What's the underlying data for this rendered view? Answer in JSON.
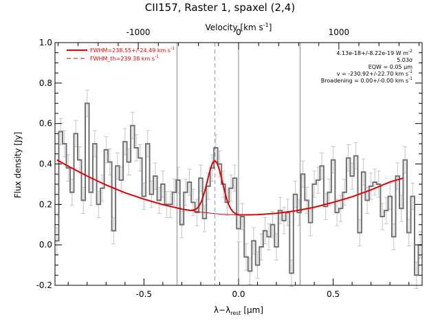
{
  "chart_data": {
    "type": "line",
    "title": "CII157, Raster 1, spaxel (2,4)",
    "xlabel": "λ−λ",
    "xlabel_sub": "rest",
    "xlabel_unit": " [μm]",
    "ylabel": "Flux density [Jy]",
    "top_axis_label": "Velocity [km s",
    "top_axis_label_sup": "-1",
    "top_axis_label_end": "]",
    "xlim": [
      -0.97,
      0.97
    ],
    "ylim": [
      -0.2,
      1.0
    ],
    "x_ticks": [
      -0.5,
      0.0,
      0.5
    ],
    "x_tick_labels": [
      "-0.5",
      "0.0",
      "0.5"
    ],
    "y_ticks": [
      -0.2,
      0.0,
      0.2,
      0.4,
      0.6,
      0.8,
      1.0
    ],
    "y_tick_labels": [
      "-0.2",
      "0.0",
      "0.2",
      "0.4",
      "0.6",
      "0.8",
      "1.0"
    ],
    "top_ticks_x": [
      -0.53,
      0.0,
      0.53
    ],
    "top_tick_labels": [
      "-1000",
      "0",
      "1000"
    ],
    "vlines_solid": [
      -0.325,
      0.0,
      0.325
    ],
    "vline_dashed": -0.125,
    "spectrum": {
      "name": "data",
      "color": "#707070",
      "x": [
        -0.96,
        -0.94,
        -0.92,
        -0.9,
        -0.88,
        -0.86,
        -0.84,
        -0.82,
        -0.8,
        -0.78,
        -0.76,
        -0.74,
        -0.72,
        -0.7,
        -0.68,
        -0.66,
        -0.64,
        -0.62,
        -0.6,
        -0.58,
        -0.56,
        -0.54,
        -0.52,
        -0.5,
        -0.48,
        -0.46,
        -0.44,
        -0.42,
        -0.4,
        -0.38,
        -0.36,
        -0.34,
        -0.32,
        -0.3,
        -0.28,
        -0.26,
        -0.24,
        -0.22,
        -0.2,
        -0.18,
        -0.16,
        -0.14,
        -0.12,
        -0.1,
        -0.08,
        -0.06,
        -0.04,
        -0.02,
        0.0,
        0.02,
        0.04,
        0.06,
        0.08,
        0.1,
        0.12,
        0.14,
        0.16,
        0.18,
        0.2,
        0.22,
        0.24,
        0.26,
        0.28,
        0.3,
        0.32,
        0.34,
        0.36,
        0.38,
        0.4,
        0.42,
        0.44,
        0.46,
        0.48,
        0.5,
        0.52,
        0.54,
        0.56,
        0.58,
        0.6,
        0.62,
        0.64,
        0.66,
        0.68,
        0.7,
        0.72,
        0.74,
        0.76,
        0.78,
        0.8,
        0.82,
        0.84,
        0.86,
        0.88,
        0.9,
        0.92,
        0.94,
        0.96
      ],
      "y": [
        0.02,
        0.56,
        0.5,
        0.38,
        0.26,
        0.55,
        0.42,
        0.22,
        0.7,
        0.26,
        0.5,
        0.2,
        0.28,
        0.47,
        0.41,
        0.07,
        0.39,
        0.32,
        0.51,
        0.41,
        0.59,
        0.48,
        0.43,
        0.24,
        0.5,
        0.25,
        0.34,
        0.22,
        0.3,
        0.2,
        0.2,
        0.26,
        0.32,
        0.1,
        0.26,
        0.31,
        0.21,
        0.16,
        0.33,
        0.13,
        0.29,
        0.38,
        0.48,
        0.4,
        0.3,
        0.21,
        0.28,
        0.33,
        0.08,
        0.14,
        -0.06,
        -0.13,
        0.02,
        -0.1,
        -0.01,
        0.07,
        0.04,
        0.1,
        -0.01,
        0.17,
        0.12,
        0.16,
        -0.14,
        0.25,
        0.16,
        0.35,
        0.22,
        0.11,
        0.3,
        0.32,
        0.39,
        0.19,
        0.26,
        0.42,
        0.16,
        0.18,
        0.26,
        0.43,
        0.34,
        0.44,
        0.06,
        0.36,
        0.22,
        0.29,
        0.31,
        0.3,
        0.14,
        0.17,
        0.24,
        0.04,
        0.34,
        0.18,
        0.42,
        0.06,
        0.24,
        -0.15,
        0.0
      ],
      "err": 0.065
    },
    "continuum": {
      "name": "continuum",
      "color": "#e00000",
      "x": [
        -0.96,
        -0.9,
        -0.8,
        -0.7,
        -0.6,
        -0.5,
        -0.4,
        -0.3,
        -0.2,
        -0.1,
        0.0,
        0.1,
        0.2,
        0.3,
        0.4,
        0.5,
        0.6,
        0.7,
        0.8,
        0.87
      ],
      "y": [
        0.42,
        0.389,
        0.34,
        0.296,
        0.258,
        0.226,
        0.199,
        0.177,
        0.162,
        0.152,
        0.148,
        0.149,
        0.156,
        0.168,
        0.186,
        0.21,
        0.238,
        0.272,
        0.311,
        0.33
      ]
    },
    "gaussian_fit": {
      "name": "FWHM=238.55+/-24.49 km s",
      "color": "#e00000",
      "center": -0.125,
      "amplitude": 0.26,
      "sigma": 0.04,
      "x_range": [
        -0.25,
        0.0
      ]
    },
    "legend": {
      "placement": "top-left",
      "entries": [
        {
          "label": "FWHM=238.55+/-24.49 km s",
          "sup": "-1",
          "style": "solid",
          "color": "#e00000"
        },
        {
          "label": "FWHM_th=239.38 km s",
          "sup": "-1",
          "style": "dashed",
          "color": "#e00000"
        }
      ]
    },
    "annotations": [
      {
        "text": "4.13e-18+/-8.22e-19 W m",
        "sup": "-2"
      },
      {
        "text": "5.03σ",
        "sup": ""
      },
      {
        "text": "EQW = 0.05 μm",
        "sup": ""
      },
      {
        "text": "v = -230.92+/-22.70 km s",
        "sup": "-1"
      },
      {
        "text": "Broadening = 0.00+/-0.00 km s",
        "sup": "-1"
      }
    ],
    "grid": false
  }
}
